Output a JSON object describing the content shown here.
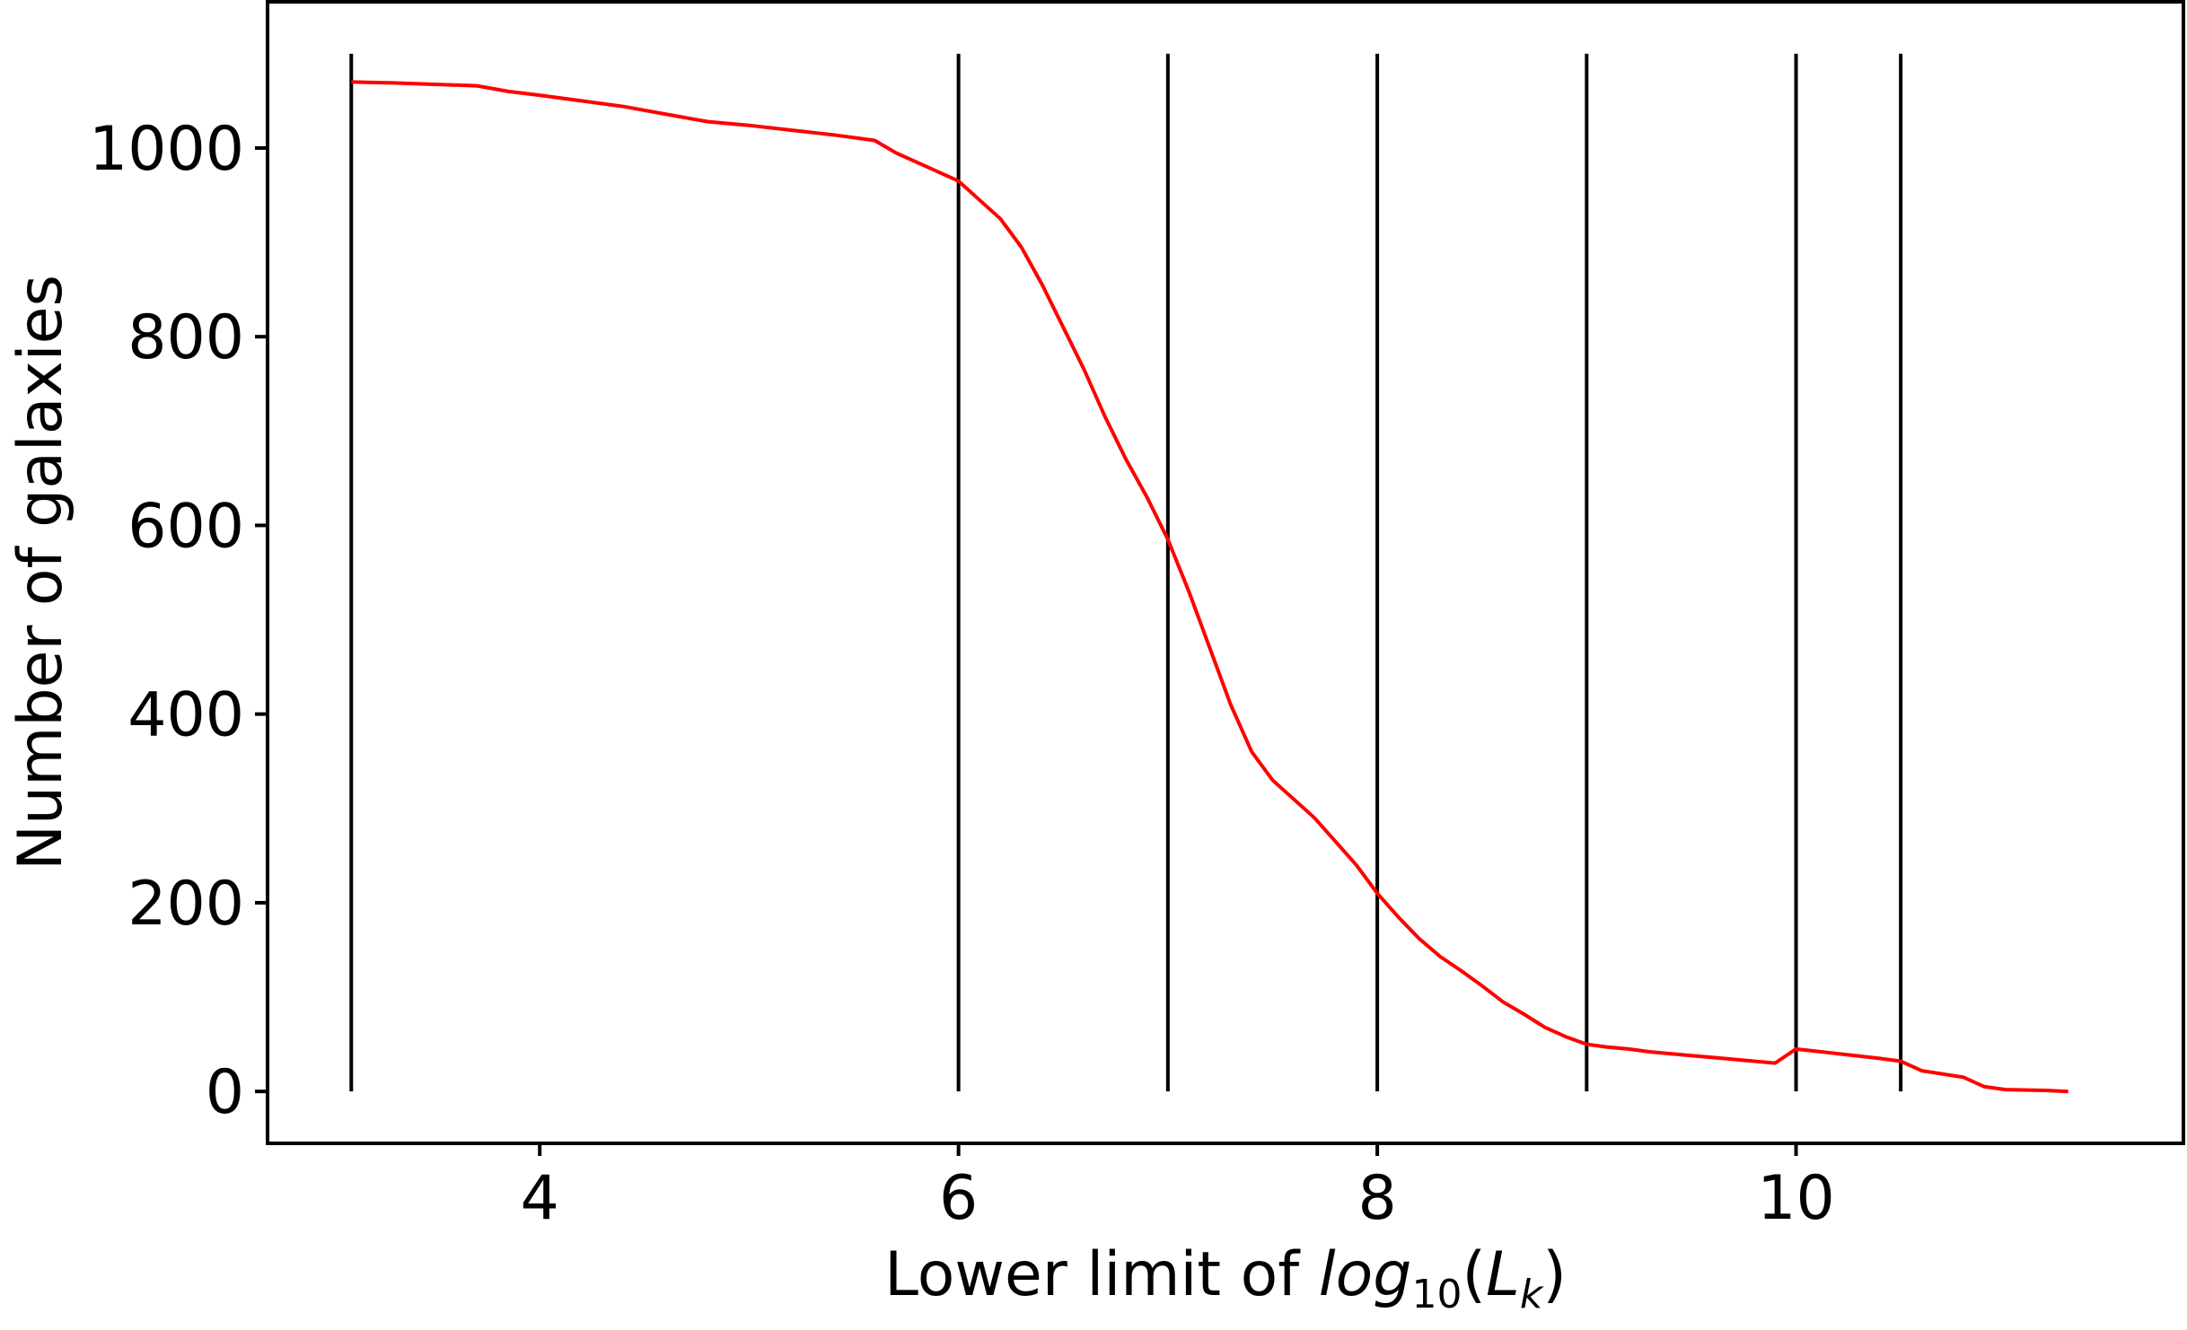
{
  "chart_data": {
    "type": "line",
    "title": "",
    "xlabel": {
      "prefix": "Lower limit of ",
      "log": "log",
      "base": "10",
      "open": "(",
      "var": "L",
      "sub": "k",
      "close": ")"
    },
    "ylabel": "Number of galaxies",
    "xlim": [
      2.7,
      11.85
    ],
    "ylim": [
      -55,
      1155
    ],
    "x_ticks": [
      4,
      6,
      8,
      10
    ],
    "x_tick_labels": [
      "4",
      "6",
      "8",
      "10"
    ],
    "y_ticks": [
      0,
      200,
      400,
      600,
      800,
      1000
    ],
    "y_tick_labels": [
      "0",
      "200",
      "400",
      "600",
      "800",
      "1000"
    ],
    "grid": false,
    "vertical_lines": {
      "x": [
        3.1,
        6.0,
        7.0,
        8.0,
        9.0,
        10.0,
        10.5
      ],
      "ymin": 0,
      "ymax": 1100,
      "color": "#000000"
    },
    "series": [
      {
        "color": "#ff0000",
        "x": [
          3.1,
          3.3,
          3.7,
          3.85,
          4.0,
          4.2,
          4.4,
          4.6,
          4.8,
          5.0,
          5.2,
          5.4,
          5.6,
          5.7,
          5.8,
          5.9,
          6.0,
          6.1,
          6.2,
          6.3,
          6.4,
          6.5,
          6.6,
          6.7,
          6.8,
          6.9,
          7.0,
          7.1,
          7.2,
          7.3,
          7.4,
          7.5,
          7.6,
          7.7,
          7.8,
          7.9,
          8.0,
          8.1,
          8.2,
          8.3,
          8.4,
          8.5,
          8.6,
          8.7,
          8.8,
          8.9,
          9.0,
          9.1,
          9.2,
          9.3,
          9.4,
          9.5,
          9.6,
          9.7,
          9.8,
          9.9,
          10.0,
          10.2,
          10.4,
          10.5,
          10.6,
          10.8,
          10.9,
          11.0,
          11.2,
          11.3
        ],
        "y": [
          1070,
          1069,
          1066,
          1060,
          1056,
          1050,
          1044,
          1036,
          1028,
          1024,
          1019,
          1014,
          1008,
          995,
          985,
          975,
          965,
          945,
          925,
          895,
          855,
          810,
          765,
          715,
          670,
          630,
          585,
          530,
          470,
          410,
          360,
          330,
          310,
          290,
          265,
          240,
          210,
          185,
          162,
          143,
          128,
          112,
          95,
          82,
          68,
          58,
          50,
          47,
          45,
          42,
          40,
          38,
          36,
          34,
          32,
          30,
          45,
          40,
          35,
          32,
          22,
          15,
          5,
          2,
          1,
          0
        ]
      }
    ]
  }
}
